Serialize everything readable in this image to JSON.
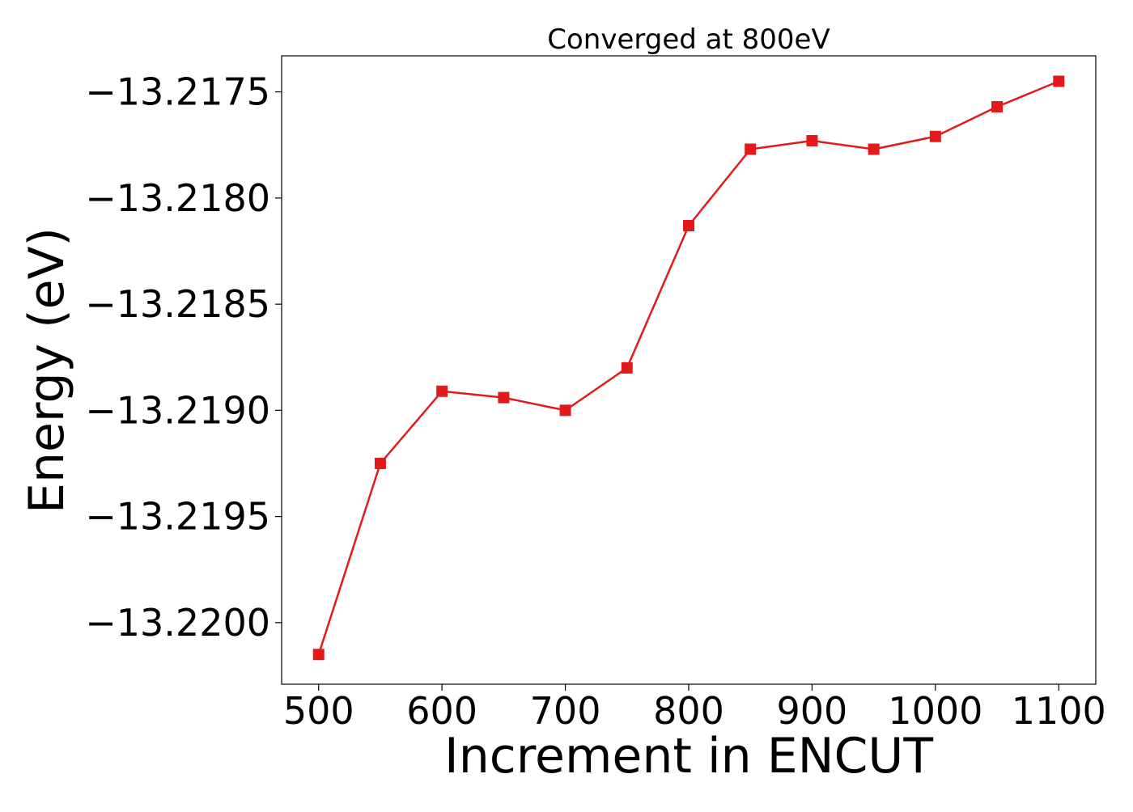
{
  "chart_data": {
    "type": "line",
    "title": "Converged at 800eV",
    "xlabel": "Increment in ENCUT",
    "ylabel": "Energy (eV)",
    "xlim": [
      470,
      1130
    ],
    "ylim": [
      -13.22029,
      -13.21733
    ],
    "xticks": [
      500,
      600,
      700,
      800,
      900,
      1000,
      1100
    ],
    "xtick_labels": [
      "500",
      "600",
      "700",
      "800",
      "900",
      "1000",
      "1100"
    ],
    "yticks": [
      -13.2175,
      -13.218,
      -13.2185,
      -13.219,
      -13.2195,
      -13.22
    ],
    "ytick_labels": [
      "−13.2175",
      "−13.2180",
      "−13.2185",
      "−13.2190",
      "−13.2195",
      "−13.2200"
    ],
    "grid": false,
    "legend": "none",
    "series": [
      {
        "color": "#e31a1c",
        "marker": "square",
        "x": [
          500,
          550,
          600,
          650,
          700,
          750,
          800,
          850,
          900,
          950,
          1000,
          1050,
          1100
        ],
        "y": [
          -13.22015,
          -13.21925,
          -13.21891,
          -13.21894,
          -13.219,
          -13.2188,
          -13.21813,
          -13.21777,
          -13.21773,
          -13.21777,
          -13.21771,
          -13.21757,
          -13.21745
        ]
      }
    ]
  }
}
